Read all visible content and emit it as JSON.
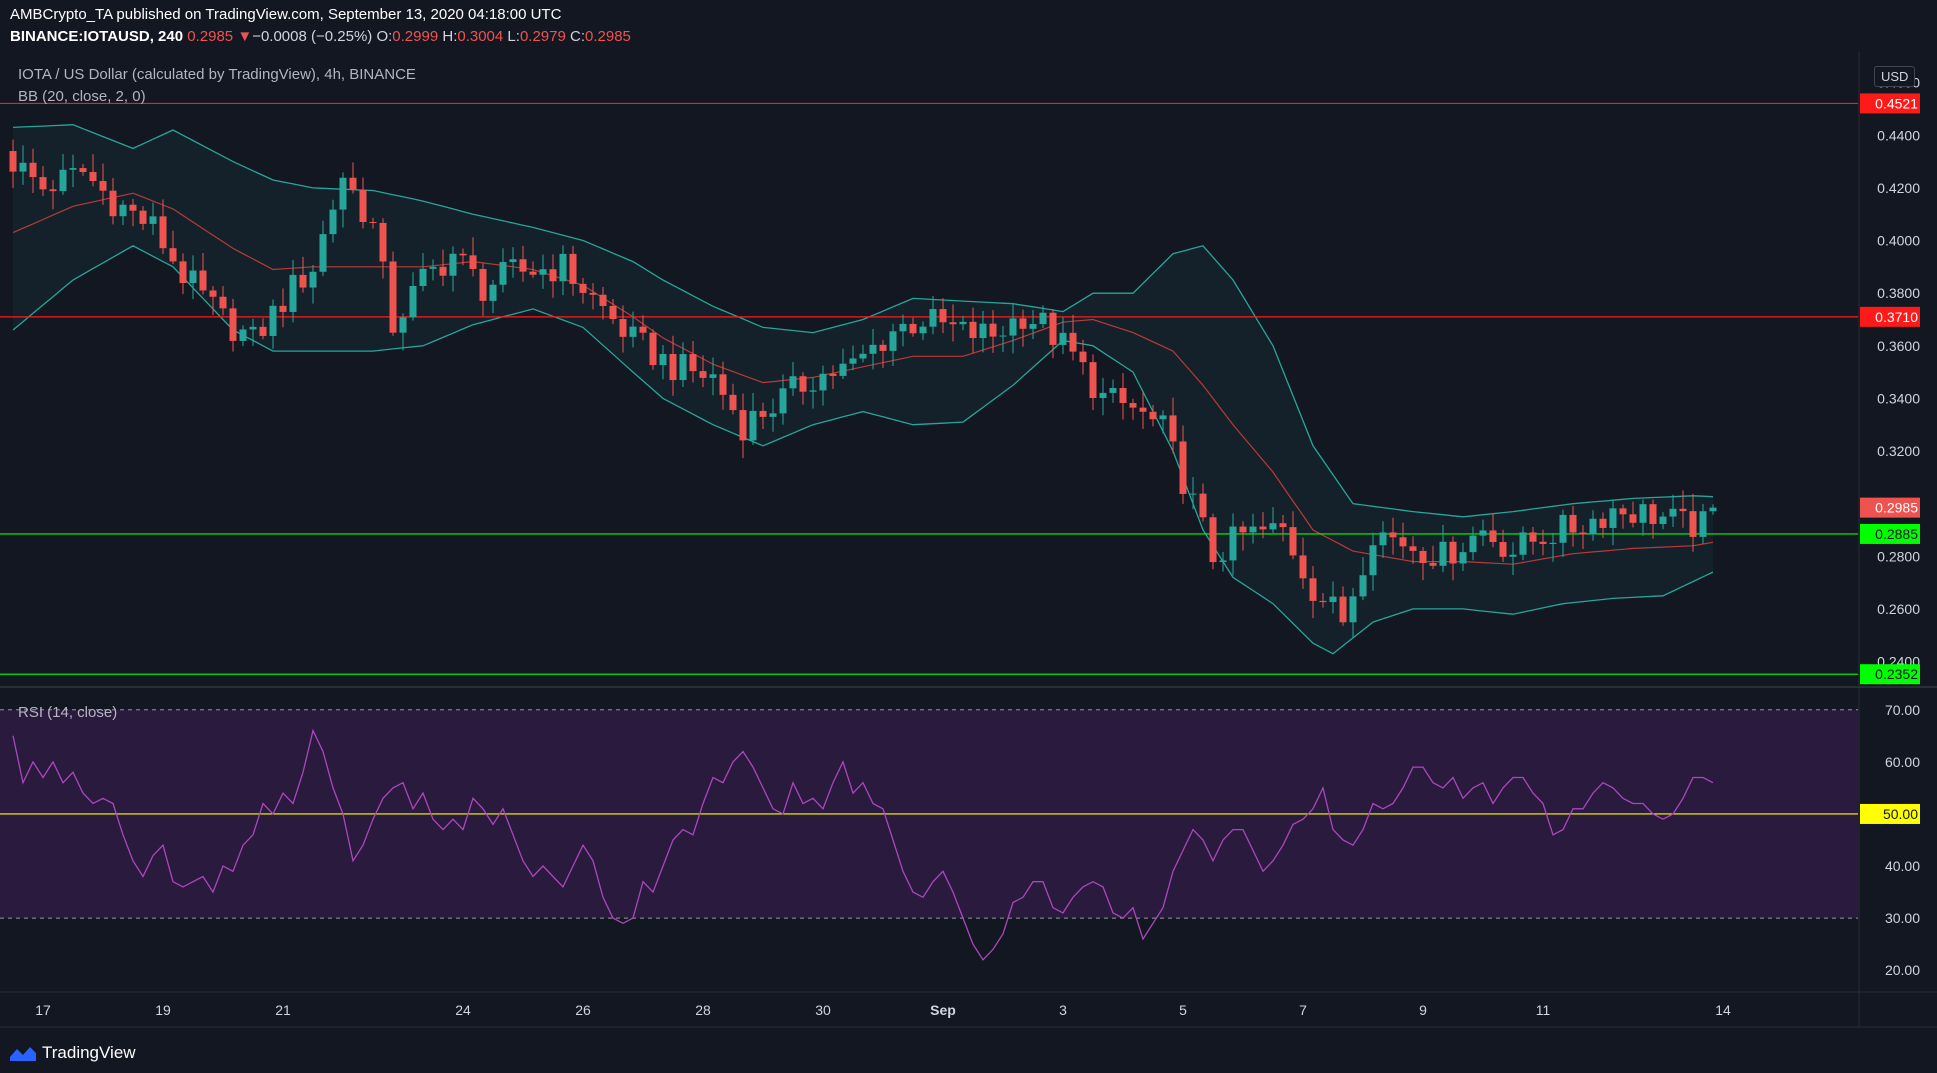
{
  "header": {
    "line1": "AMBCrypto_TA published on TradingView.com, September 13, 2020 04:18:00 UTC",
    "symbol": "BINANCE:IOTAUSD, 240",
    "last": "0.2985",
    "change_arrow": "▼",
    "change": "−0.0008 (−0.25%)",
    "o_label": "O:",
    "o": "0.2999",
    "h_label": "H:",
    "h": "0.3004",
    "l_label": "L:",
    "l": "0.2979",
    "c_label": "C:",
    "c": "0.2985"
  },
  "legends": {
    "main": "IOTA / US Dollar (calculated by TradingView), 4h, BINANCE",
    "bb": "BB (20, close, 2, 0)",
    "rsi": "RSI (14, close)"
  },
  "currency": "USD",
  "footer": {
    "brand": "TradingView",
    "logo_icon": "tradingview-logo-icon"
  },
  "colors": {
    "background": "#131722",
    "up": "#26a69a",
    "down": "#ef5350",
    "bb_band": "#26a69a",
    "bb_basis": "#b83a3a",
    "rsi_line": "#ab47bc",
    "rsi_fill": "#2a1a3e",
    "resistance": "#ff1a1a",
    "support": "#00ff00",
    "rsi_mid": "#ffff00"
  },
  "chart_data": [
    {
      "type": "candlestick",
      "title": "IOTA / US Dollar (calculated by TradingView), 4h, BINANCE",
      "price_axis": {
        "ticks": [
          "0.4600",
          "0.4400",
          "0.4200",
          "0.4000",
          "0.3800",
          "0.3600",
          "0.3400",
          "0.3200",
          "0.3000",
          "0.2800",
          "0.2600",
          "0.2400"
        ],
        "ylim": [
          0.233,
          0.461
        ]
      },
      "time_axis": {
        "ticks": [
          "17",
          "19",
          "21",
          "24",
          "26",
          "28",
          "30",
          "Sep",
          "3",
          "5",
          "7",
          "9",
          "11",
          "14"
        ]
      },
      "horizontal_levels": [
        {
          "value": "0.4521",
          "kind": "resistance"
        },
        {
          "value": "0.3710",
          "kind": "resistance"
        },
        {
          "value": "0.2885",
          "kind": "support"
        },
        {
          "value": "0.2352",
          "kind": "support"
        }
      ],
      "last_price_label": "0.2985",
      "close_anchors": [
        [
          0,
          0.43
        ],
        [
          3,
          0.42
        ],
        [
          7,
          0.426
        ],
        [
          10,
          0.415
        ],
        [
          14,
          0.405
        ],
        [
          17,
          0.387
        ],
        [
          21,
          0.37
        ],
        [
          24,
          0.362
        ],
        [
          28,
          0.382
        ],
        [
          30,
          0.39
        ],
        [
          33,
          0.425
        ],
        [
          36,
          0.405
        ],
        [
          38,
          0.368
        ],
        [
          41,
          0.385
        ],
        [
          44,
          0.395
        ],
        [
          47,
          0.382
        ],
        [
          50,
          0.388
        ],
        [
          55,
          0.39
        ],
        [
          58,
          0.378
        ],
        [
          62,
          0.362
        ],
        [
          66,
          0.352
        ],
        [
          70,
          0.348
        ],
        [
          73,
          0.33
        ],
        [
          77,
          0.34
        ],
        [
          80,
          0.348
        ],
        [
          84,
          0.352
        ],
        [
          88,
          0.366
        ],
        [
          91,
          0.37
        ],
        [
          95,
          0.365
        ],
        [
          98,
          0.364
        ],
        [
          101,
          0.372
        ],
        [
          103,
          0.368
        ],
        [
          106,
          0.356
        ],
        [
          109,
          0.34
        ],
        [
          112,
          0.336
        ],
        [
          115,
          0.328
        ],
        [
          118,
          0.3
        ],
        [
          120,
          0.28
        ],
        [
          123,
          0.288
        ],
        [
          127,
          0.29
        ],
        [
          130,
          0.268
        ],
        [
          133,
          0.256
        ],
        [
          136,
          0.29
        ],
        [
          140,
          0.284
        ],
        [
          143,
          0.28
        ],
        [
          147,
          0.29
        ],
        [
          150,
          0.282
        ],
        [
          153,
          0.288
        ],
        [
          157,
          0.292
        ],
        [
          160,
          0.298
        ],
        [
          164,
          0.296
        ],
        [
          167,
          0.292
        ],
        [
          171,
          0.291
        ],
        [
          174,
          0.296
        ],
        [
          177,
          0.2985
        ]
      ],
      "bb_upper_anchors": [
        [
          0,
          0.443
        ],
        [
          6,
          0.444
        ],
        [
          12,
          0.435
        ],
        [
          16,
          0.442
        ],
        [
          22,
          0.43
        ],
        [
          26,
          0.423
        ],
        [
          30,
          0.42
        ],
        [
          36,
          0.419
        ],
        [
          41,
          0.415
        ],
        [
          46,
          0.41
        ],
        [
          52,
          0.405
        ],
        [
          57,
          0.4
        ],
        [
          62,
          0.392
        ],
        [
          65,
          0.385
        ],
        [
          70,
          0.375
        ],
        [
          75,
          0.367
        ],
        [
          80,
          0.365
        ],
        [
          85,
          0.37
        ],
        [
          90,
          0.378
        ],
        [
          95,
          0.377
        ],
        [
          100,
          0.376
        ],
        [
          105,
          0.373
        ],
        [
          108,
          0.38
        ],
        [
          112,
          0.38
        ],
        [
          116,
          0.395
        ],
        [
          119,
          0.398
        ],
        [
          122,
          0.385
        ],
        [
          126,
          0.36
        ],
        [
          130,
          0.322
        ],
        [
          134,
          0.3
        ],
        [
          140,
          0.297
        ],
        [
          145,
          0.295
        ],
        [
          150,
          0.297
        ],
        [
          156,
          0.3
        ],
        [
          162,
          0.302
        ],
        [
          168,
          0.303
        ],
        [
          174,
          0.302
        ],
        [
          177,
          0.304
        ]
      ],
      "bb_lower_anchors": [
        [
          0,
          0.366
        ],
        [
          6,
          0.385
        ],
        [
          12,
          0.398
        ],
        [
          16,
          0.39
        ],
        [
          22,
          0.366
        ],
        [
          26,
          0.358
        ],
        [
          30,
          0.358
        ],
        [
          36,
          0.358
        ],
        [
          41,
          0.36
        ],
        [
          46,
          0.368
        ],
        [
          52,
          0.374
        ],
        [
          57,
          0.367
        ],
        [
          62,
          0.35
        ],
        [
          65,
          0.34
        ],
        [
          70,
          0.33
        ],
        [
          75,
          0.322
        ],
        [
          80,
          0.33
        ],
        [
          85,
          0.335
        ],
        [
          90,
          0.33
        ],
        [
          95,
          0.331
        ],
        [
          100,
          0.345
        ],
        [
          105,
          0.362
        ],
        [
          108,
          0.36
        ],
        [
          112,
          0.35
        ],
        [
          116,
          0.32
        ],
        [
          119,
          0.29
        ],
        [
          122,
          0.272
        ],
        [
          126,
          0.262
        ],
        [
          130,
          0.247
        ],
        [
          132,
          0.243
        ],
        [
          136,
          0.255
        ],
        [
          140,
          0.26
        ],
        [
          145,
          0.26
        ],
        [
          150,
          0.258
        ],
        [
          155,
          0.262
        ],
        [
          160,
          0.264
        ],
        [
          165,
          0.265
        ],
        [
          170,
          0.274
        ],
        [
          174,
          0.282
        ],
        [
          177,
          0.282
        ]
      ],
      "bb_basis_anchors": [
        [
          0,
          0.403
        ],
        [
          6,
          0.413
        ],
        [
          12,
          0.418
        ],
        [
          16,
          0.412
        ],
        [
          22,
          0.397
        ],
        [
          26,
          0.389
        ],
        [
          30,
          0.39
        ],
        [
          36,
          0.39
        ],
        [
          41,
          0.39
        ],
        [
          46,
          0.392
        ],
        [
          52,
          0.389
        ],
        [
          57,
          0.383
        ],
        [
          62,
          0.371
        ],
        [
          65,
          0.363
        ],
        [
          70,
          0.353
        ],
        [
          75,
          0.346
        ],
        [
          80,
          0.348
        ],
        [
          85,
          0.352
        ],
        [
          90,
          0.356
        ],
        [
          95,
          0.356
        ],
        [
          100,
          0.362
        ],
        [
          105,
          0.369
        ],
        [
          108,
          0.37
        ],
        [
          112,
          0.365
        ],
        [
          116,
          0.358
        ],
        [
          119,
          0.345
        ],
        [
          122,
          0.33
        ],
        [
          126,
          0.312
        ],
        [
          130,
          0.29
        ],
        [
          134,
          0.282
        ],
        [
          140,
          0.278
        ],
        [
          145,
          0.278
        ],
        [
          150,
          0.277
        ],
        [
          156,
          0.281
        ],
        [
          162,
          0.283
        ],
        [
          168,
          0.284
        ],
        [
          174,
          0.288
        ],
        [
          177,
          0.292
        ]
      ]
    },
    {
      "type": "line",
      "title": "RSI (14, close)",
      "y_ticks": [
        "70.00",
        "60.00",
        "40.00",
        "30.00",
        "20.00"
      ],
      "ylim": [
        16.2,
        73.8
      ],
      "band": [
        30,
        70
      ],
      "mid_level": {
        "value": 50,
        "label": "50.00"
      },
      "values": [
        65,
        56,
        60,
        57,
        60,
        56,
        58,
        54,
        52,
        53,
        52,
        46,
        41,
        38,
        42,
        44,
        37,
        36,
        37,
        38,
        35,
        40,
        39,
        44,
        46,
        52,
        50,
        54,
        52,
        58,
        66,
        62,
        55,
        50,
        41,
        44,
        49,
        53,
        55,
        56,
        51,
        54,
        49,
        47,
        49,
        47,
        53,
        51,
        48,
        51,
        46,
        41,
        38,
        40,
        38,
        36,
        40,
        44,
        41,
        34,
        30,
        29,
        30,
        37,
        35,
        40,
        45,
        47,
        46,
        52,
        57,
        56,
        60,
        62,
        59,
        55,
        51,
        50,
        56,
        52,
        53,
        51,
        56,
        60,
        54,
        56,
        52,
        51,
        45,
        39,
        35,
        34,
        37,
        39,
        35,
        30,
        25,
        22,
        24,
        27,
        33,
        34,
        37,
        37,
        32,
        31,
        34,
        36,
        37,
        36,
        31,
        30,
        32,
        26,
        29,
        32,
        39,
        43,
        47,
        45,
        41,
        45,
        47,
        47,
        43,
        39,
        41,
        44,
        48,
        49,
        51,
        55,
        47,
        45,
        44,
        47,
        52,
        51,
        52,
        55,
        59,
        59,
        56,
        55,
        57,
        53,
        55,
        56,
        52,
        55,
        57,
        57,
        54,
        52,
        46,
        47,
        51,
        51,
        54,
        56,
        55,
        53,
        52,
        52,
        50,
        49,
        50,
        53,
        57,
        57,
        56
      ]
    }
  ]
}
